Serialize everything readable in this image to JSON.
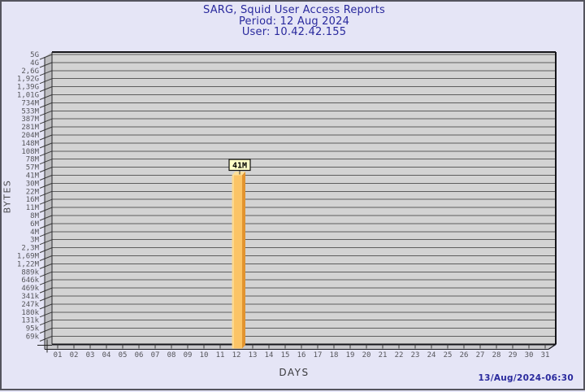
{
  "header": {
    "title": "SARG, Squid User Access Reports",
    "period": "Period: 12 Aug 2024",
    "user": "User: 10.42.42.155",
    "title_color": "#29299d"
  },
  "footer": {
    "timestamp": "13/Aug/2024-06:30"
  },
  "chart_data": {
    "type": "bar",
    "title": "SARG, Squid User Access Reports",
    "subtitle": "Period: 12 Aug 2024",
    "user_line": "User: 10.42.42.155",
    "xlabel": "DAYS",
    "ylabel": "BYTES",
    "y_scale": "log",
    "legend": "none",
    "grid": "horizontal",
    "y_tick_labels": [
      "5G",
      "4G",
      "2,6G",
      "1,92G",
      "1,39G",
      "1,01G",
      "734M",
      "533M",
      "387M",
      "281M",
      "204M",
      "148M",
      "108M",
      "78M",
      "57M",
      "41M",
      "30M",
      "22M",
      "16M",
      "11M",
      "8M",
      "6M",
      "4M",
      "3M",
      "2,3M",
      "1,69M",
      "1,22M",
      "889k",
      "646k",
      "469k",
      "341k",
      "247k",
      "180k",
      "131k",
      "95k",
      "69k"
    ],
    "x_tick_labels": [
      "01",
      "02",
      "03",
      "04",
      "05",
      "06",
      "07",
      "08",
      "09",
      "10",
      "11",
      "12",
      "13",
      "14",
      "15",
      "16",
      "17",
      "18",
      "19",
      "20",
      "21",
      "22",
      "23",
      "24",
      "25",
      "26",
      "27",
      "28",
      "29",
      "30",
      "31"
    ],
    "bars": [
      {
        "day": "12",
        "value_label": "41M",
        "value_bytes_approx": 41000000,
        "y_tick_index": 15
      }
    ],
    "colors": {
      "plot_face": "#d3d3d3",
      "grid_line": "#5e5e5e",
      "wall": "#bdbdc0",
      "floor": "#c8c8cb",
      "frame": "#15151a",
      "tick_text": "#55555a",
      "bar_front": "#fbc466",
      "bar_front_highlight": "#fcd88e",
      "bar_side": "#e2942f",
      "bar_top": "#fbdf9a",
      "value_box_bg": "#ffffc8",
      "value_box_border": "#111111"
    }
  }
}
